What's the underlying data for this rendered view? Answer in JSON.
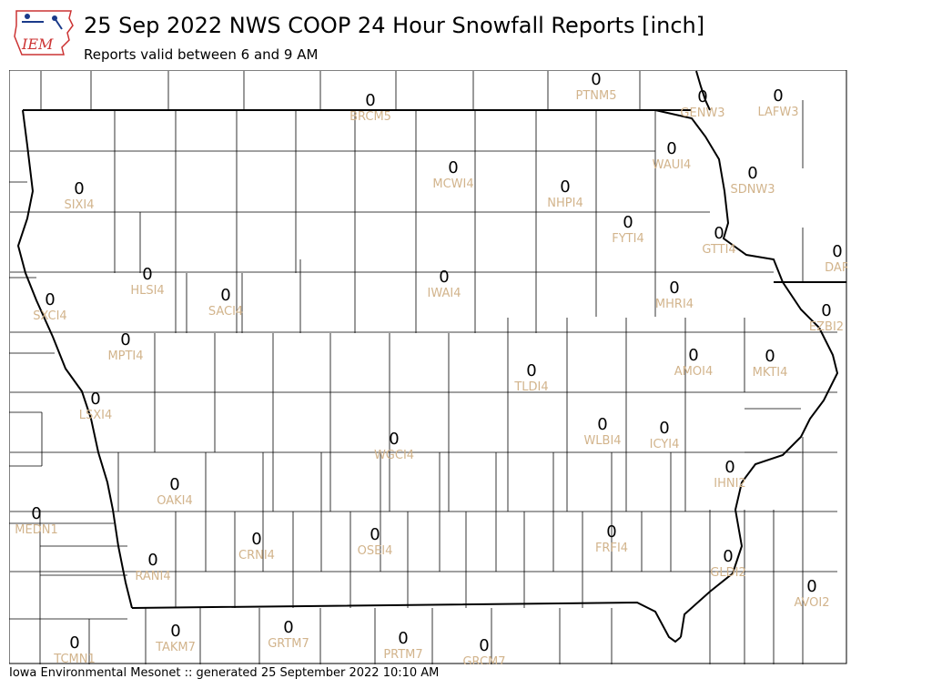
{
  "header": {
    "title": "25 Sep 2022 NWS COOP 24 Hour Snowfall Reports [inch]",
    "subtitle": "Reports valid between 6 and 9 AM",
    "logo_text": "IEM"
  },
  "footer": {
    "text": "Iowa Environmental Mesonet :: generated 25 September 2022 10:10 AM"
  },
  "colors": {
    "station_label": "#d2b48c",
    "value": "#000000",
    "logo": "#cc3333"
  },
  "stations": [
    {
      "id": "PTNM5",
      "value": "0"
    },
    {
      "id": "BRCM5",
      "value": "0"
    },
    {
      "id": "GENW3",
      "value": "0"
    },
    {
      "id": "LAFW3",
      "value": "0"
    },
    {
      "id": "WAUI4",
      "value": "0"
    },
    {
      "id": "SIXI4",
      "value": "0"
    },
    {
      "id": "MCWI4",
      "value": "0"
    },
    {
      "id": "NHPI4",
      "value": "0"
    },
    {
      "id": "SDNW3",
      "value": "0"
    },
    {
      "id": "FYTI4",
      "value": "0"
    },
    {
      "id": "GTTI4",
      "value": "0"
    },
    {
      "id": "DAR",
      "value": "0"
    },
    {
      "id": "HLSI4",
      "value": "0"
    },
    {
      "id": "IWAI4",
      "value": "0"
    },
    {
      "id": "SXCI4",
      "value": "0"
    },
    {
      "id": "SACI4",
      "value": "0"
    },
    {
      "id": "MHRI4",
      "value": "0"
    },
    {
      "id": "EZBI2",
      "value": "0"
    },
    {
      "id": "MPTI4",
      "value": "0"
    },
    {
      "id": "AMOI4",
      "value": "0"
    },
    {
      "id": "MKTI4",
      "value": "0"
    },
    {
      "id": "TLDI4",
      "value": "0"
    },
    {
      "id": "LSXI4",
      "value": "0"
    },
    {
      "id": "WLBI4",
      "value": "0"
    },
    {
      "id": "ICYI4",
      "value": "0"
    },
    {
      "id": "WGCI4",
      "value": "0"
    },
    {
      "id": "IHNI2",
      "value": "0"
    },
    {
      "id": "OAKI4",
      "value": "0"
    },
    {
      "id": "MEDN1",
      "value": "0"
    },
    {
      "id": "CRNI4",
      "value": "0"
    },
    {
      "id": "OSEI4",
      "value": "0"
    },
    {
      "id": "FRFI4",
      "value": "0"
    },
    {
      "id": "RANI4",
      "value": "0"
    },
    {
      "id": "GLDI2",
      "value": "0"
    },
    {
      "id": "AVOI2",
      "value": "0"
    },
    {
      "id": "TAKM7",
      "value": "0"
    },
    {
      "id": "GRTM7",
      "value": "0"
    },
    {
      "id": "PRTM7",
      "value": "0"
    },
    {
      "id": "GRCM7",
      "value": "0"
    },
    {
      "id": "TCMN1",
      "value": "0"
    }
  ]
}
